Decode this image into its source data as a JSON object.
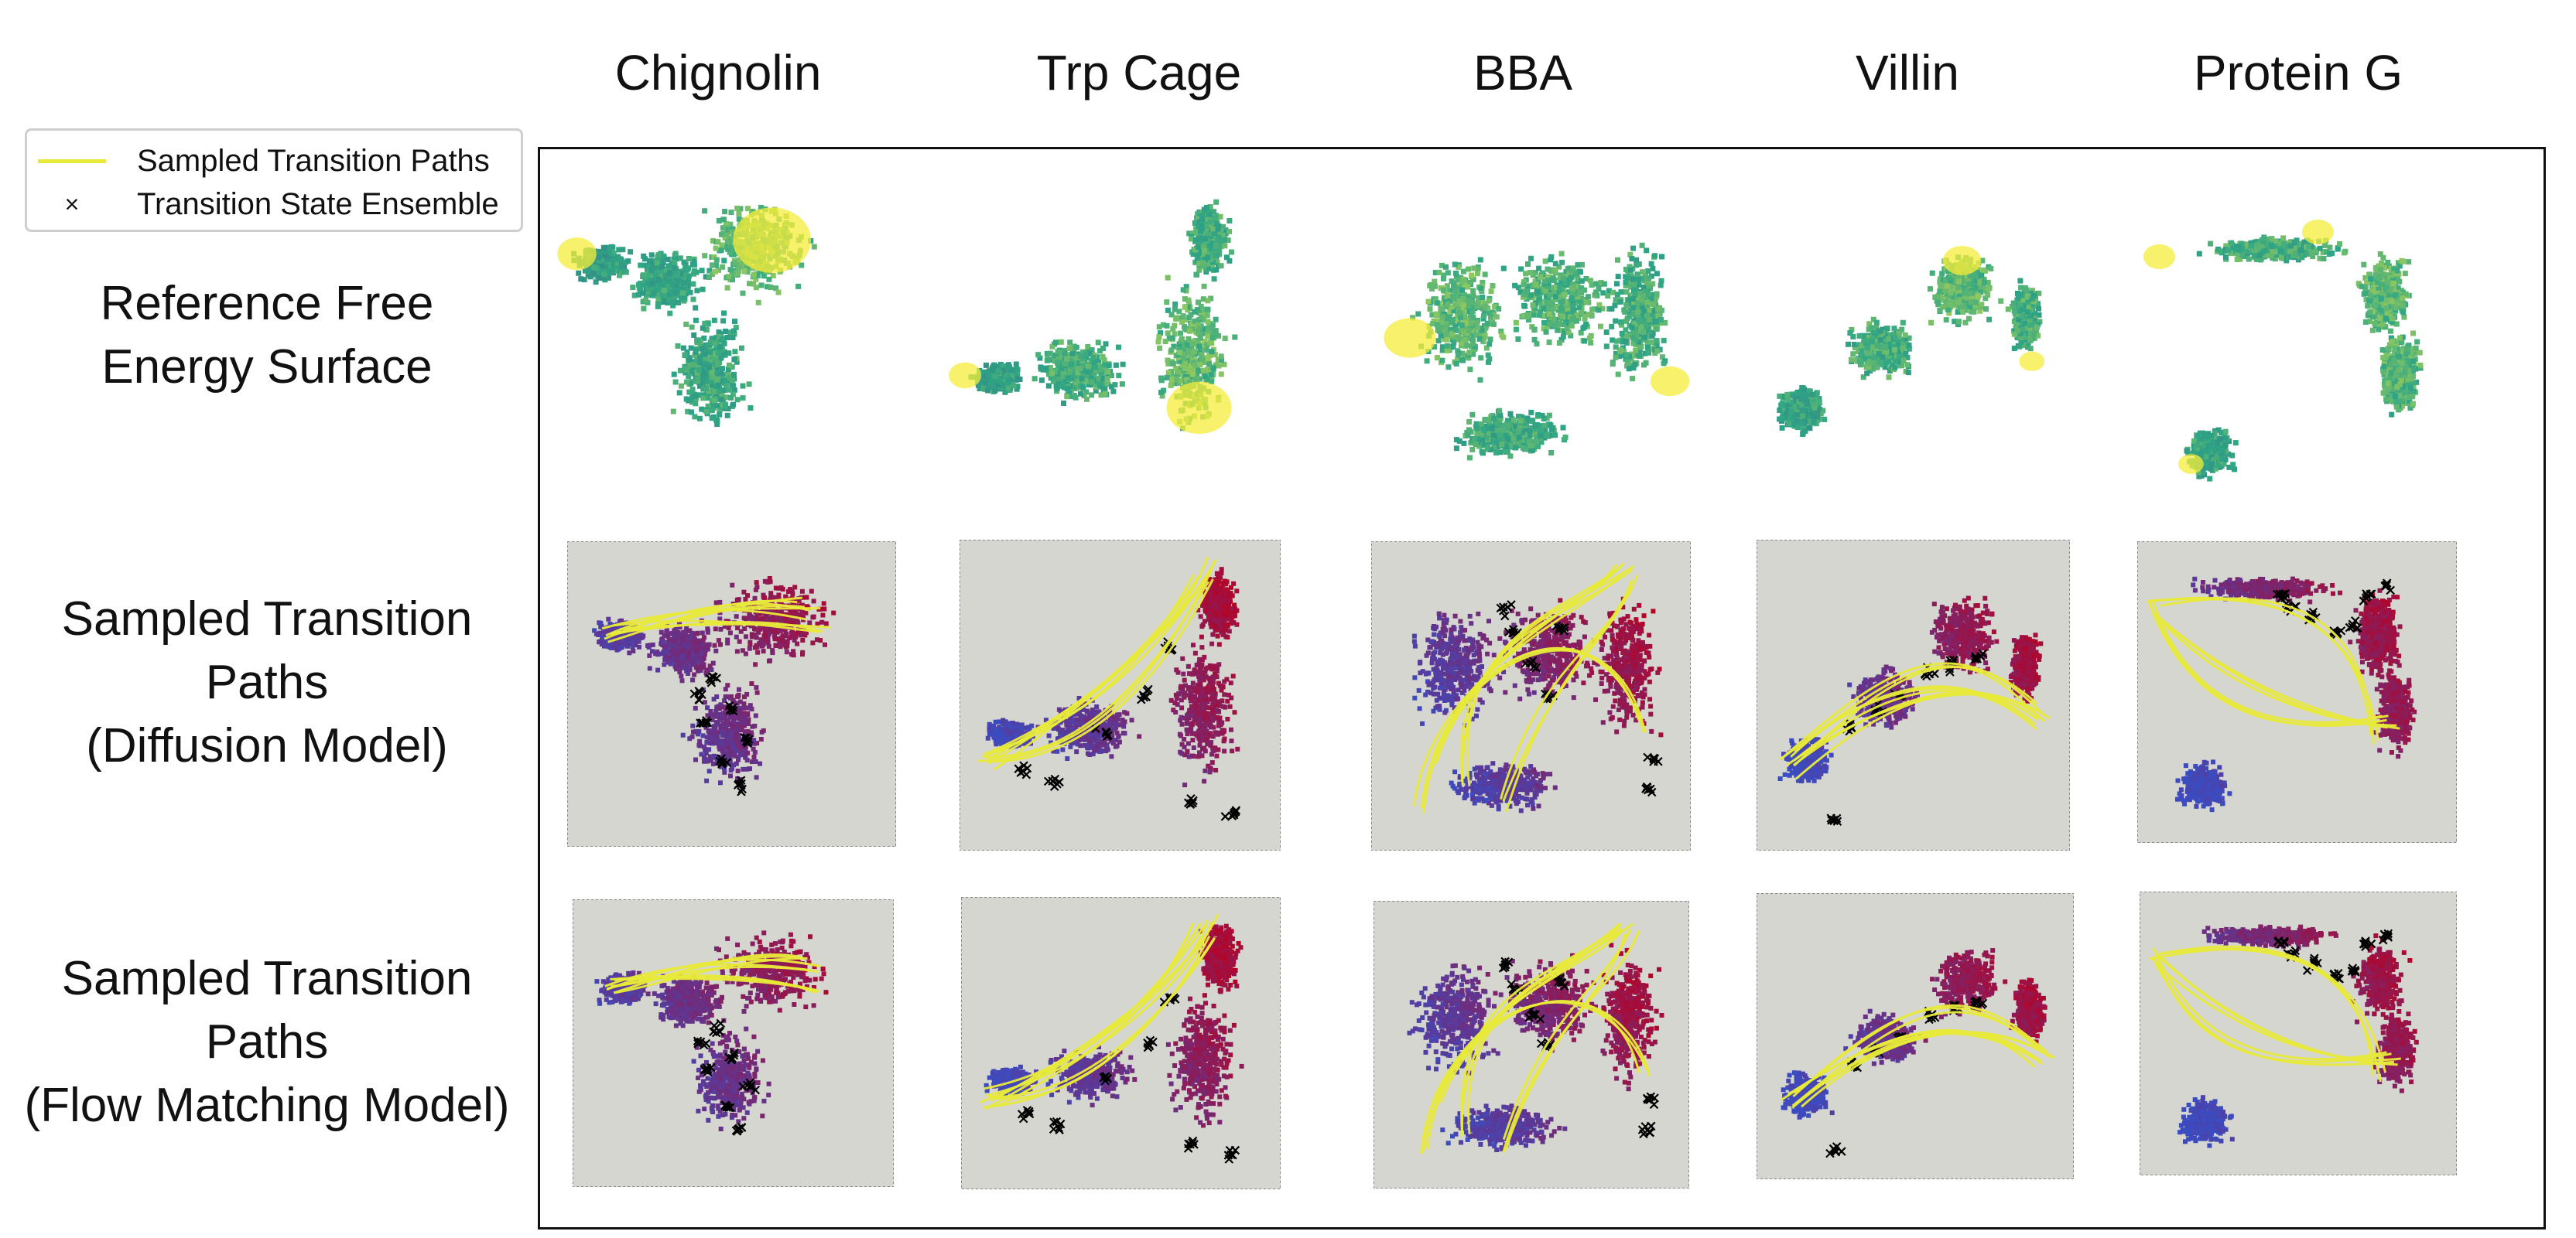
{
  "columns": [
    "Chignolin",
    "Trp Cage",
    "BBA",
    "Villin",
    "Protein G"
  ],
  "rows": [
    {
      "lines": [
        "Reference Free",
        "Energy Surface"
      ]
    },
    {
      "lines": [
        "Sampled Transition",
        "Paths",
        "(Diffusion Model)"
      ]
    },
    {
      "lines": [
        "Sampled Transition",
        "Paths",
        "(Flow Matching Model)"
      ]
    }
  ],
  "legend": {
    "paths_label": "Sampled Transition Paths",
    "tse_label": "Transition State Ensemble",
    "tse_marker": "×"
  },
  "colors": {
    "path": "#e8ea3a",
    "tse": "#000000",
    "panel_bg": "#d6d6d0",
    "fes_low": "#3e6a87",
    "fes_mid": "#2ea585",
    "fes_high": "#f4ec3a",
    "committor_low": "#3b4cc0",
    "committor_high": "#b40426"
  }
}
